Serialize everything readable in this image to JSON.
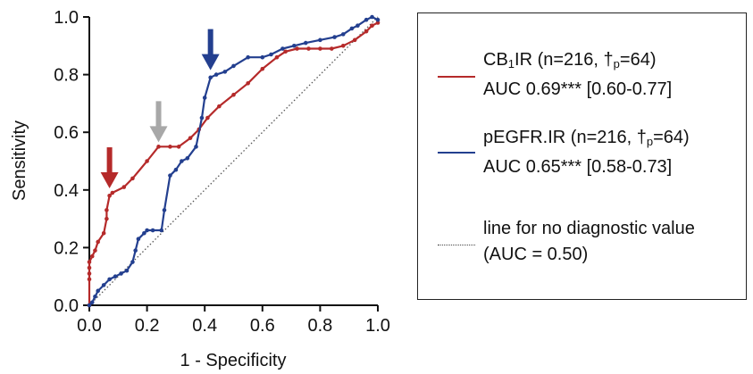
{
  "chart_data": {
    "type": "line",
    "xlabel": "1 - Specificity",
    "ylabel": "Sensitivity",
    "xlim": [
      0,
      1
    ],
    "ylim": [
      0,
      1
    ],
    "x_ticks": [
      "0.0",
      "0.2",
      "0.4",
      "0.6",
      "0.8",
      "1.0"
    ],
    "y_ticks": [
      "0.0",
      "0.2",
      "0.4",
      "0.6",
      "0.8",
      "1.0"
    ],
    "grid": false,
    "legend_position": "right",
    "series": [
      {
        "name": "CB1IR (n=216, †p=64)",
        "auc_label": "AUC 0.69*** [0.60-0.77]",
        "color": "#b52a2a",
        "x": [
          0.0,
          0.0,
          0.0,
          0.0,
          0.0,
          0.01,
          0.02,
          0.03,
          0.05,
          0.06,
          0.06,
          0.07,
          0.08,
          0.12,
          0.15,
          0.2,
          0.24,
          0.28,
          0.31,
          0.35,
          0.38,
          0.41,
          0.45,
          0.5,
          0.55,
          0.6,
          0.65,
          0.68,
          0.72,
          0.76,
          0.8,
          0.84,
          0.88,
          0.92,
          0.96,
          0.98,
          1.0
        ],
        "y": [
          0.0,
          0.09,
          0.11,
          0.13,
          0.15,
          0.17,
          0.19,
          0.22,
          0.25,
          0.3,
          0.33,
          0.38,
          0.39,
          0.41,
          0.44,
          0.5,
          0.55,
          0.55,
          0.55,
          0.58,
          0.61,
          0.65,
          0.69,
          0.73,
          0.77,
          0.82,
          0.86,
          0.88,
          0.89,
          0.89,
          0.89,
          0.89,
          0.9,
          0.92,
          0.95,
          0.97,
          0.98
        ]
      },
      {
        "name": "pEGFR.IR (n=216, †p=64)",
        "auc_label": "AUC 0.65*** [0.58-0.73]",
        "color": "#233f8f",
        "x": [
          0.0,
          0.01,
          0.02,
          0.03,
          0.05,
          0.07,
          0.09,
          0.11,
          0.13,
          0.15,
          0.16,
          0.17,
          0.19,
          0.2,
          0.22,
          0.25,
          0.26,
          0.28,
          0.3,
          0.32,
          0.34,
          0.37,
          0.39,
          0.4,
          0.42,
          0.44,
          0.47,
          0.5,
          0.55,
          0.6,
          0.63,
          0.67,
          0.71,
          0.75,
          0.8,
          0.85,
          0.88,
          0.91,
          0.93,
          0.96,
          0.98,
          1.0
        ],
        "y": [
          0.0,
          0.01,
          0.03,
          0.05,
          0.07,
          0.09,
          0.1,
          0.11,
          0.12,
          0.15,
          0.19,
          0.23,
          0.25,
          0.26,
          0.26,
          0.26,
          0.33,
          0.45,
          0.47,
          0.5,
          0.51,
          0.55,
          0.65,
          0.72,
          0.79,
          0.8,
          0.81,
          0.83,
          0.86,
          0.86,
          0.87,
          0.89,
          0.9,
          0.91,
          0.92,
          0.93,
          0.94,
          0.96,
          0.97,
          0.99,
          1.0,
          0.99
        ]
      },
      {
        "name": "line for no diagnostic value (AUC = 0.50)",
        "color": "#555555",
        "style": "dotted",
        "x": [
          0,
          1
        ],
        "y": [
          0,
          1
        ]
      }
    ],
    "arrows": [
      {
        "x": 0.07,
        "y": 0.39,
        "color": "#b52a2a"
      },
      {
        "x": 0.24,
        "y": 0.55,
        "color": "#a8a8a8"
      },
      {
        "x": 0.42,
        "y": 0.8,
        "color": "#233f8f"
      }
    ]
  },
  "legend": {
    "entries": [
      {
        "line1_main": "CB",
        "line1_sub": "1",
        "line1_rest": "IR (n=216, †",
        "line1_sub2": "p",
        "line1_tail": "=64)",
        "line2": "AUC 0.69*** [0.60-0.77]"
      },
      {
        "line1_main": "pEGFR.IR (n=216, †",
        "line1_sub": "p",
        "line1_tail": "=64)",
        "line2": "AUC 0.65*** [0.58-0.73]"
      },
      {
        "line1": "line for no diagnostic value",
        "line2": "(AUC = 0.50)"
      }
    ]
  }
}
